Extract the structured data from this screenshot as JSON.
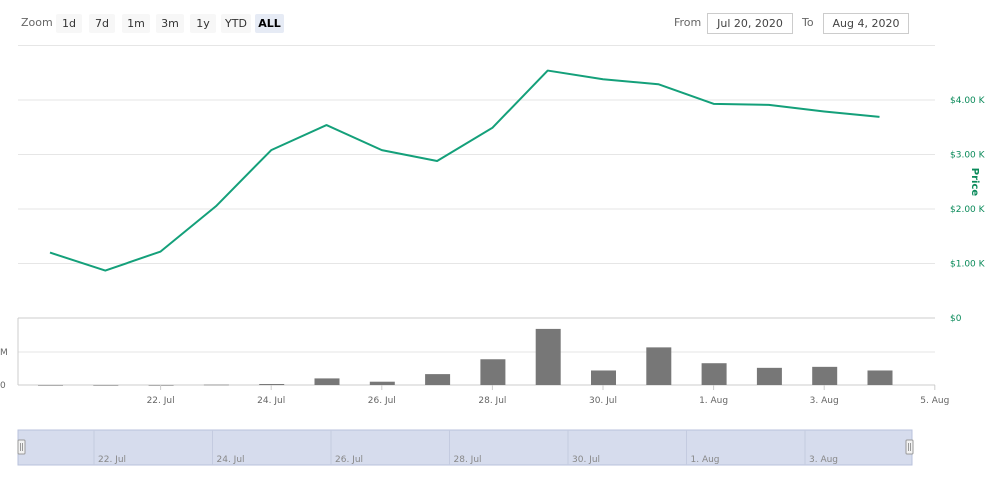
{
  "toolbar": {
    "zoom_label": "Zoom",
    "zoom_buttons": [
      "1d",
      "7d",
      "1m",
      "3m",
      "1y",
      "YTD",
      "ALL"
    ],
    "active_zoom": "ALL",
    "from_label": "From",
    "from_value": "Jul 20, 2020",
    "to_label": "To",
    "to_value": "Aug 4, 2020"
  },
  "colors": {
    "price_line": "#14a07a",
    "volume_bar": "#777777",
    "axis_accent": "#0a8a5a",
    "navigator_fill": "#d6dced"
  },
  "chart_data": {
    "type": "line",
    "title": "",
    "x": [
      "2020-07-20",
      "2020-07-21",
      "2020-07-22",
      "2020-07-23",
      "2020-07-24",
      "2020-07-25",
      "2020-07-26",
      "2020-07-27",
      "2020-07-28",
      "2020-07-29",
      "2020-07-30",
      "2020-07-31",
      "2020-08-01",
      "2020-08-02",
      "2020-08-03",
      "2020-08-04"
    ],
    "series": [
      {
        "name": "Price",
        "axis": "right",
        "values": [
          1200,
          870,
          1220,
          2050,
          3080,
          3540,
          3080,
          2880,
          3490,
          4540,
          4380,
          4290,
          3930,
          3910,
          3790,
          3690
        ]
      }
    ],
    "volume": {
      "type": "bar",
      "left_axis_ticks": [
        "M",
        "0"
      ],
      "values": [
        0,
        0,
        0,
        0.01,
        0.03,
        0.2,
        0.1,
        0.33,
        0.78,
        1.7,
        0.44,
        1.14,
        0.66,
        0.52,
        0.55,
        0.44
      ]
    },
    "right_axis": {
      "title": "Price",
      "ticks": [
        "$0",
        "$1.00 K",
        "$2.00 K",
        "$3.00 K",
        "$4.00 K"
      ],
      "ylim": [
        0,
        5000
      ]
    },
    "x_tick_labels": [
      "22. Jul",
      "24. Jul",
      "26. Jul",
      "28. Jul",
      "30. Jul",
      "1. Aug",
      "3. Aug",
      "5. Aug"
    ],
    "navigator_labels": [
      "22. Jul",
      "24. Jul",
      "26. Jul",
      "28. Jul",
      "30. Jul",
      "1. Aug",
      "3. Aug"
    ],
    "grid": true
  }
}
